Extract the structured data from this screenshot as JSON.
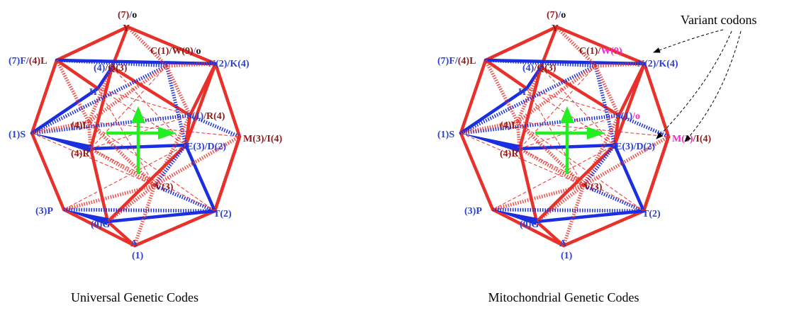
{
  "colors": {
    "red": "#e8312a",
    "blue": "#1a2fe0",
    "dark_red": "#8b1a1a",
    "label_blue": "#2a3fd6",
    "variant": "#ff22cc",
    "arrow_green": "#22ee22"
  },
  "annotation": "Variant codons",
  "panels": [
    {
      "id": "universal",
      "caption": "Universal Genetic Codes",
      "nodes": [
        {
          "id": "top",
          "parts": [
            {
              "t": "(7)",
              "c": "dark_red"
            },
            {
              "t": "/",
              "c": "label_blue"
            },
            {
              "t": "o",
              "c": "dark"
            }
          ]
        },
        {
          "id": "Y",
          "parts": [
            {
              "t": "Y",
              "c": "dark_red"
            }
          ]
        },
        {
          "id": "L1",
          "parts": [
            {
              "t": "(7)F/",
              "c": "label_blue"
            },
            {
              "t": "(4)L",
              "c": "dark_red"
            }
          ]
        },
        {
          "id": "Q",
          "parts": [
            {
              "t": "(4)",
              "c": "label_blue"
            },
            {
              "t": "/Q(3)",
              "c": "dark_red"
            }
          ]
        },
        {
          "id": "H",
          "parts": [
            {
              "t": "H",
              "c": "label_blue"
            }
          ]
        },
        {
          "id": "C",
          "parts": [
            {
              "t": "C(1)/W(9)",
              "c": "dark_red"
            },
            {
              "t": "/",
              "c": "variant"
            },
            {
              "t": "o",
              "c": "dark"
            }
          ]
        },
        {
          "id": "N",
          "parts": [
            {
              "t": "N(2)/K(4)",
              "c": "label_blue"
            }
          ]
        },
        {
          "id": "S1",
          "parts": [
            {
              "t": "S(1)",
              "c": "label_blue"
            },
            {
              "t": "/R(4)",
              "c": "dark_red"
            }
          ]
        },
        {
          "id": "L2",
          "parts": [
            {
              "t": "(4)L",
              "c": "dark_red"
            }
          ]
        },
        {
          "id": "S",
          "parts": [
            {
              "t": "(1)S",
              "c": "label_blue"
            }
          ]
        },
        {
          "id": "M",
          "parts": [
            {
              "t": "M(3)/I(4)",
              "c": "dark_red"
            }
          ]
        },
        {
          "id": "R",
          "parts": [
            {
              "t": "(4)R",
              "c": "dark_red"
            }
          ]
        },
        {
          "id": "E",
          "parts": [
            {
              "t": "E(3)/D(2)",
              "c": "label_blue"
            }
          ]
        },
        {
          "id": "V",
          "parts": [
            {
              "t": "V(3)",
              "c": "dark_red"
            }
          ]
        },
        {
          "id": "P",
          "parts": [
            {
              "t": "(3)P",
              "c": "label_blue"
            }
          ]
        },
        {
          "id": "G",
          "parts": [
            {
              "t": "(0)G",
              "c": "label_blue"
            }
          ]
        },
        {
          "id": "T",
          "parts": [
            {
              "t": "T(2)",
              "c": "label_blue"
            }
          ]
        },
        {
          "id": "A",
          "parts": [
            {
              "t": "A",
              "c": "label_blue"
            }
          ]
        },
        {
          "id": "A1",
          "parts": [
            {
              "t": "(1)",
              "c": "label_blue"
            }
          ]
        }
      ]
    },
    {
      "id": "mitochondrial",
      "caption": "Mitochondrial Genetic Codes",
      "nodes": [
        {
          "id": "top",
          "parts": [
            {
              "t": "(7)",
              "c": "dark_red"
            },
            {
              "t": "/",
              "c": "label_blue"
            },
            {
              "t": "o",
              "c": "dark"
            }
          ]
        },
        {
          "id": "Y",
          "parts": [
            {
              "t": "Y",
              "c": "dark_red"
            }
          ]
        },
        {
          "id": "L1",
          "parts": [
            {
              "t": "(7)F/",
              "c": "label_blue"
            },
            {
              "t": "(4)L",
              "c": "dark_red"
            }
          ]
        },
        {
          "id": "Q",
          "parts": [
            {
              "t": "(4)",
              "c": "label_blue"
            },
            {
              "t": "/Q(3)",
              "c": "dark_red"
            }
          ]
        },
        {
          "id": "H",
          "parts": [
            {
              "t": "H",
              "c": "label_blue"
            }
          ]
        },
        {
          "id": "C",
          "parts": [
            {
              "t": "C(1)/",
              "c": "dark_red"
            },
            {
              "t": "W(9)",
              "c": "variant"
            }
          ]
        },
        {
          "id": "N",
          "parts": [
            {
              "t": "N(2)/K(4)",
              "c": "label_blue"
            }
          ]
        },
        {
          "id": "S1",
          "parts": [
            {
              "t": "S(1)",
              "c": "label_blue"
            },
            {
              "t": "/o",
              "c": "variant"
            }
          ]
        },
        {
          "id": "L2",
          "parts": [
            {
              "t": "(4)L",
              "c": "dark_red"
            }
          ]
        },
        {
          "id": "S",
          "parts": [
            {
              "t": "(1)S",
              "c": "label_blue"
            }
          ]
        },
        {
          "id": "M",
          "parts": [
            {
              "t": "M(3)",
              "c": "variant"
            },
            {
              "t": "/I(4)",
              "c": "dark_red"
            }
          ]
        },
        {
          "id": "R",
          "parts": [
            {
              "t": "(4)R",
              "c": "dark_red"
            }
          ]
        },
        {
          "id": "E",
          "parts": [
            {
              "t": "E(3)/D(2)",
              "c": "label_blue"
            }
          ]
        },
        {
          "id": "V",
          "parts": [
            {
              "t": "V(3)",
              "c": "dark_red"
            }
          ]
        },
        {
          "id": "P",
          "parts": [
            {
              "t": "(3)P",
              "c": "label_blue"
            }
          ]
        },
        {
          "id": "G",
          "parts": [
            {
              "t": "(0)G",
              "c": "label_blue"
            }
          ]
        },
        {
          "id": "T",
          "parts": [
            {
              "t": "T(2)",
              "c": "label_blue"
            }
          ]
        },
        {
          "id": "A",
          "parts": [
            {
              "t": "A",
              "c": "label_blue"
            }
          ]
        },
        {
          "id": "A1",
          "parts": [
            {
              "t": "(1)",
              "c": "label_blue"
            }
          ]
        }
      ]
    }
  ]
}
